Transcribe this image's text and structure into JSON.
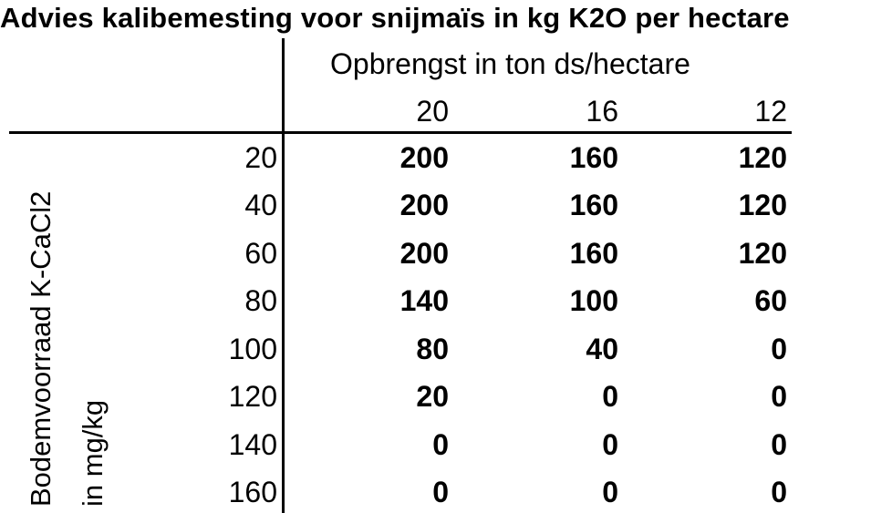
{
  "title": "Advies kalibemesting voor snijmaïs in kg K2O per hectare",
  "column_header": "Opbrengst in ton ds/hectare",
  "yields": [
    "20",
    "16",
    "12"
  ],
  "row_axis_label_line1": "Bodemvoorraad K-CaCl2",
  "row_axis_label_line2": "in mg/kg",
  "rows": [
    {
      "label": "20",
      "values": [
        "200",
        "160",
        "120"
      ]
    },
    {
      "label": "40",
      "values": [
        "200",
        "160",
        "120"
      ]
    },
    {
      "label": "60",
      "values": [
        "200",
        "160",
        "120"
      ]
    },
    {
      "label": "80",
      "values": [
        "140",
        "100",
        "60"
      ]
    },
    {
      "label": "100",
      "values": [
        "80",
        "40",
        "0"
      ]
    },
    {
      "label": "120",
      "values": [
        "20",
        "0",
        "0"
      ]
    },
    {
      "label": "140",
      "values": [
        "0",
        "0",
        "0"
      ]
    },
    {
      "label": "160",
      "values": [
        "0",
        "0",
        "0"
      ]
    }
  ]
}
